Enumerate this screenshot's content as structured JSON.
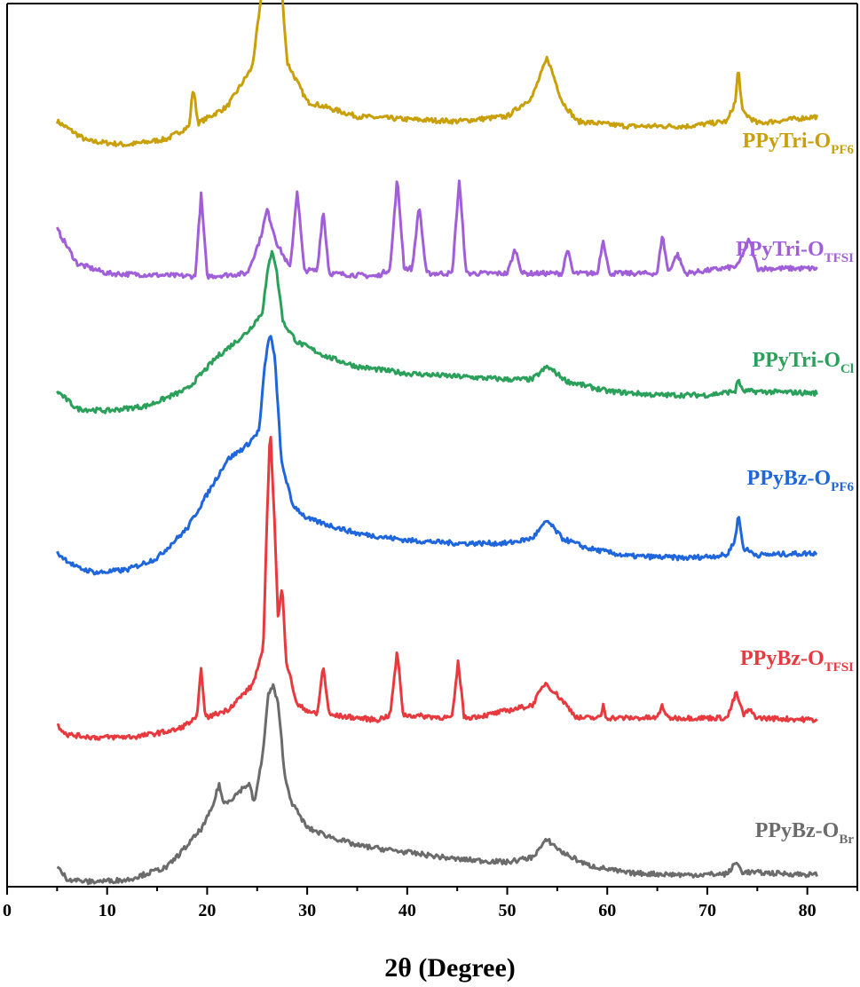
{
  "chart_data": {
    "type": "line",
    "title": "",
    "xlabel": "2θ (Degree)",
    "ylabel": "",
    "xlim": [
      0,
      85
    ],
    "ylim": [
      0,
      9
    ],
    "x_ticks": [
      0,
      10,
      20,
      30,
      40,
      50,
      60,
      70,
      80
    ],
    "y_ticks": [],
    "grid": false,
    "legend": "inline labels beside each pattern",
    "series": [
      {
        "name": "PPyTri-O",
        "name_subscript": "PF6",
        "color": "#c9a008",
        "offset": 6.9,
        "points": [
          [
            5,
            0.9
          ],
          [
            8,
            0.7
          ],
          [
            12,
            0.66
          ],
          [
            16,
            0.72
          ],
          [
            18.2,
            0.85
          ],
          [
            18.6,
            1.25
          ],
          [
            19.1,
            0.88
          ],
          [
            22,
            1.05
          ],
          [
            24.5,
            1.45
          ],
          [
            25.6,
            2.3
          ],
          [
            26.0,
            6.2
          ],
          [
            26.3,
            7.4
          ],
          [
            26.6,
            6.2
          ],
          [
            27.2,
            2.6
          ],
          [
            28,
            1.5
          ],
          [
            30,
            1.1
          ],
          [
            35,
            0.95
          ],
          [
            40,
            0.92
          ],
          [
            45,
            0.9
          ],
          [
            50,
            0.95
          ],
          [
            52.5,
            1.15
          ],
          [
            54,
            1.55
          ],
          [
            55.5,
            1.1
          ],
          [
            57,
            0.9
          ],
          [
            62,
            0.85
          ],
          [
            68,
            0.85
          ],
          [
            72,
            0.9
          ],
          [
            72.8,
            1.1
          ],
          [
            73.1,
            1.45
          ],
          [
            73.5,
            1.0
          ],
          [
            75,
            0.88
          ],
          [
            81,
            0.95
          ]
        ]
      },
      {
        "name": "PPyTri-O",
        "name_subscript": "TFSI",
        "color": "#a05ed8",
        "offset": 5.6,
        "points": [
          [
            5,
            1.1
          ],
          [
            7,
            0.75
          ],
          [
            10,
            0.65
          ],
          [
            18.8,
            0.62
          ],
          [
            19.4,
            1.45
          ],
          [
            20.0,
            0.62
          ],
          [
            24,
            0.65
          ],
          [
            25.3,
            1.0
          ],
          [
            26,
            1.3
          ],
          [
            27,
            0.95
          ],
          [
            28.3,
            0.7
          ],
          [
            29.0,
            1.5
          ],
          [
            29.7,
            0.68
          ],
          [
            31.0,
            0.68
          ],
          [
            31.6,
            1.3
          ],
          [
            32.2,
            0.65
          ],
          [
            37,
            0.62
          ],
          [
            38.3,
            0.7
          ],
          [
            39.0,
            1.62
          ],
          [
            39.7,
            0.7
          ],
          [
            40.5,
            0.7
          ],
          [
            41.2,
            1.35
          ],
          [
            41.9,
            0.65
          ],
          [
            44.5,
            0.65
          ],
          [
            45.2,
            1.6
          ],
          [
            45.9,
            0.65
          ],
          [
            50,
            0.65
          ],
          [
            50.8,
            0.9
          ],
          [
            51.5,
            0.65
          ],
          [
            55.5,
            0.65
          ],
          [
            56.0,
            0.9
          ],
          [
            56.6,
            0.65
          ],
          [
            59.0,
            0.65
          ],
          [
            59.6,
            1.0
          ],
          [
            60.2,
            0.65
          ],
          [
            65,
            0.65
          ],
          [
            65.5,
            1.05
          ],
          [
            66.1,
            0.66
          ],
          [
            67.0,
            0.85
          ],
          [
            67.8,
            0.65
          ],
          [
            73,
            0.72
          ],
          [
            74.2,
            1.0
          ],
          [
            75,
            0.7
          ],
          [
            81,
            0.7
          ]
        ]
      },
      {
        "name": "PPyTri-O",
        "name_subscript": "Cl",
        "color": "#2aa05a",
        "offset": 4.45,
        "points": [
          [
            5,
            0.6
          ],
          [
            7,
            0.42
          ],
          [
            10,
            0.4
          ],
          [
            14,
            0.45
          ],
          [
            18,
            0.62
          ],
          [
            21,
            0.95
          ],
          [
            24,
            1.2
          ],
          [
            25.5,
            1.4
          ],
          [
            26.1,
            1.85
          ],
          [
            26.5,
            2.05
          ],
          [
            26.9,
            1.85
          ],
          [
            27.6,
            1.3
          ],
          [
            29,
            1.1
          ],
          [
            32,
            0.95
          ],
          [
            35,
            0.85
          ],
          [
            40,
            0.78
          ],
          [
            45,
            0.75
          ],
          [
            50,
            0.72
          ],
          [
            52.5,
            0.72
          ],
          [
            54,
            0.85
          ],
          [
            56,
            0.7
          ],
          [
            60,
            0.6
          ],
          [
            65,
            0.56
          ],
          [
            70,
            0.56
          ],
          [
            72.8,
            0.6
          ],
          [
            73.1,
            0.73
          ],
          [
            73.5,
            0.6
          ],
          [
            81,
            0.58
          ]
        ]
      },
      {
        "name": "PPyBz-O",
        "name_subscript": "PF6",
        "color": "#1f66dd",
        "offset": 3.05,
        "points": [
          [
            5,
            0.35
          ],
          [
            7,
            0.2
          ],
          [
            9,
            0.15
          ],
          [
            12,
            0.18
          ],
          [
            15,
            0.3
          ],
          [
            18,
            0.6
          ],
          [
            20,
            0.95
          ],
          [
            22,
            1.3
          ],
          [
            24,
            1.45
          ],
          [
            25.2,
            1.6
          ],
          [
            25.8,
            2.3
          ],
          [
            26.3,
            2.6
          ],
          [
            26.8,
            2.3
          ],
          [
            27.4,
            1.3
          ],
          [
            28.5,
            0.85
          ],
          [
            30,
            0.7
          ],
          [
            35,
            0.55
          ],
          [
            40,
            0.48
          ],
          [
            45,
            0.45
          ],
          [
            50,
            0.45
          ],
          [
            52.5,
            0.5
          ],
          [
            54,
            0.68
          ],
          [
            55.5,
            0.5
          ],
          [
            58,
            0.4
          ],
          [
            62,
            0.32
          ],
          [
            68,
            0.3
          ],
          [
            72,
            0.33
          ],
          [
            72.8,
            0.5
          ],
          [
            73.1,
            0.75
          ],
          [
            73.6,
            0.4
          ],
          [
            75,
            0.33
          ],
          [
            81,
            0.35
          ]
        ]
      },
      {
        "name": "PPyBz-O",
        "name_subscript": "TFSI",
        "color": "#e83a3e",
        "offset": 1.3,
        "points": [
          [
            5,
            0.35
          ],
          [
            6,
            0.25
          ],
          [
            9,
            0.22
          ],
          [
            13,
            0.23
          ],
          [
            17,
            0.3
          ],
          [
            19.0,
            0.42
          ],
          [
            19.4,
            0.95
          ],
          [
            19.8,
            0.42
          ],
          [
            22,
            0.5
          ],
          [
            24.5,
            0.75
          ],
          [
            25.6,
            1.1
          ],
          [
            26.0,
            2.5
          ],
          [
            26.3,
            3.4
          ],
          [
            26.7,
            2.5
          ],
          [
            27.1,
            1.4
          ],
          [
            27.5,
            1.8
          ],
          [
            27.9,
            1.0
          ],
          [
            29,
            0.55
          ],
          [
            31.0,
            0.45
          ],
          [
            31.6,
            0.95
          ],
          [
            32.2,
            0.45
          ],
          [
            37,
            0.4
          ],
          [
            38.3,
            0.45
          ],
          [
            39.0,
            1.1
          ],
          [
            39.6,
            0.45
          ],
          [
            44.5,
            0.42
          ],
          [
            45.1,
            1.0
          ],
          [
            45.7,
            0.42
          ],
          [
            48,
            0.45
          ],
          [
            52.5,
            0.55
          ],
          [
            53.8,
            0.78
          ],
          [
            55.5,
            0.6
          ],
          [
            57,
            0.42
          ],
          [
            59.3,
            0.42
          ],
          [
            59.6,
            0.55
          ],
          [
            59.9,
            0.42
          ],
          [
            65,
            0.42
          ],
          [
            65.5,
            0.55
          ],
          [
            66,
            0.42
          ],
          [
            72,
            0.42
          ],
          [
            72.9,
            0.68
          ],
          [
            73.6,
            0.45
          ],
          [
            74.2,
            0.5
          ],
          [
            75,
            0.42
          ],
          [
            81,
            0.4
          ]
        ]
      },
      {
        "name": "PPyBz-O",
        "name_subscript": "Br",
        "color": "#6b6b6b",
        "offset": 0.0,
        "points": [
          [
            5,
            0.2
          ],
          [
            6,
            0.08
          ],
          [
            8,
            0.05
          ],
          [
            12,
            0.07
          ],
          [
            16,
            0.2
          ],
          [
            18,
            0.42
          ],
          [
            19.5,
            0.6
          ],
          [
            20.5,
            0.8
          ],
          [
            21.2,
            1.05
          ],
          [
            21.6,
            0.85
          ],
          [
            22.5,
            0.9
          ],
          [
            23.5,
            1.0
          ],
          [
            24.2,
            1.05
          ],
          [
            24.7,
            0.85
          ],
          [
            25.5,
            1.3
          ],
          [
            26.1,
            1.95
          ],
          [
            26.6,
            2.05
          ],
          [
            27.1,
            1.85
          ],
          [
            27.8,
            1.1
          ],
          [
            28.5,
            0.85
          ],
          [
            30,
            0.6
          ],
          [
            32,
            0.52
          ],
          [
            35,
            0.42
          ],
          [
            40,
            0.35
          ],
          [
            45,
            0.28
          ],
          [
            50,
            0.25
          ],
          [
            52.5,
            0.3
          ],
          [
            54,
            0.48
          ],
          [
            55.5,
            0.35
          ],
          [
            58,
            0.22
          ],
          [
            62,
            0.14
          ],
          [
            68,
            0.12
          ],
          [
            72,
            0.13
          ],
          [
            72.9,
            0.25
          ],
          [
            73.5,
            0.15
          ],
          [
            81,
            0.12
          ]
        ]
      }
    ]
  }
}
